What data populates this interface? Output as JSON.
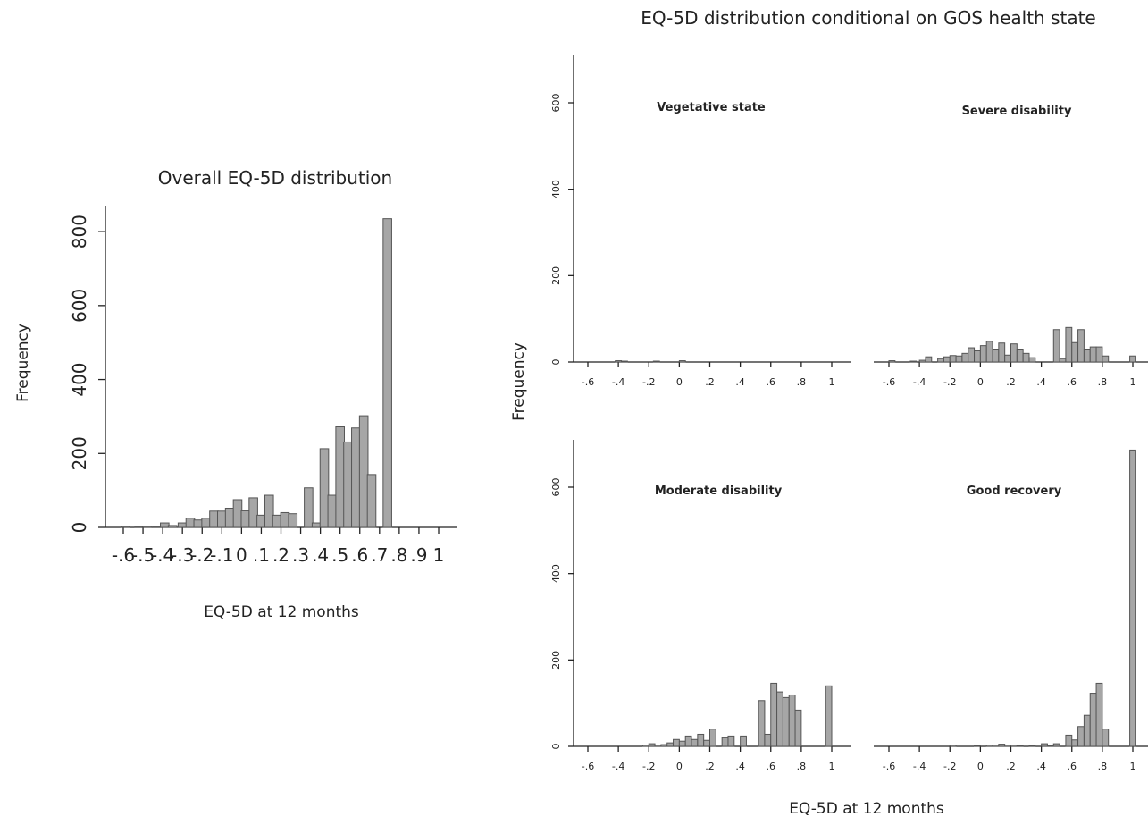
{
  "chart_data": [
    {
      "type": "bar",
      "title": "Overall EQ-5D distribution",
      "xlabel": "EQ-5D at 12 months",
      "ylabel": "Frequency",
      "ylim": [
        0,
        870
      ],
      "xlim": [
        -0.7,
        1.05
      ],
      "yticks": [
        "0",
        "200",
        "400",
        "600",
        "800"
      ],
      "xticks": [
        "-.6",
        "-.5",
        "-.4",
        "-.3",
        "-.2",
        "-.1",
        "0",
        ".1",
        ".2",
        ".3",
        ".4",
        ".5",
        ".6",
        ".7",
        ".8",
        ".9",
        "1"
      ],
      "grid": false,
      "bars": [
        {
          "x": -0.59,
          "y": 3
        },
        {
          "x": -0.52,
          "y": 1
        },
        {
          "x": -0.48,
          "y": 3
        },
        {
          "x": -0.43,
          "y": 1
        },
        {
          "x": -0.39,
          "y": 12
        },
        {
          "x": -0.35,
          "y": 5
        },
        {
          "x": -0.3,
          "y": 12
        },
        {
          "x": -0.26,
          "y": 25
        },
        {
          "x": -0.22,
          "y": 20
        },
        {
          "x": -0.18,
          "y": 25
        },
        {
          "x": -0.14,
          "y": 44
        },
        {
          "x": -0.1,
          "y": 44
        },
        {
          "x": -0.06,
          "y": 52
        },
        {
          "x": -0.02,
          "y": 75
        },
        {
          "x": 0.02,
          "y": 45
        },
        {
          "x": 0.06,
          "y": 80
        },
        {
          "x": 0.1,
          "y": 33
        },
        {
          "x": 0.14,
          "y": 87
        },
        {
          "x": 0.18,
          "y": 33
        },
        {
          "x": 0.22,
          "y": 40
        },
        {
          "x": 0.26,
          "y": 37
        },
        {
          "x": 0.34,
          "y": 107
        },
        {
          "x": 0.38,
          "y": 12
        },
        {
          "x": 0.42,
          "y": 213
        },
        {
          "x": 0.46,
          "y": 87
        },
        {
          "x": 0.5,
          "y": 272
        },
        {
          "x": 0.54,
          "y": 231
        },
        {
          "x": 0.58,
          "y": 269
        },
        {
          "x": 0.62,
          "y": 302
        },
        {
          "x": 0.66,
          "y": 143
        },
        {
          "x": 0.74,
          "y": 835
        }
      ]
    },
    {
      "type": "bar",
      "title": "EQ-5D distribution conditional on GOS health state",
      "xlabel": "EQ-5D at 12 months",
      "ylabel": "Frequency",
      "ylim": [
        0,
        710
      ],
      "xlim": [
        -0.65,
        1.05
      ],
      "yticks": [
        "0",
        "200",
        "400",
        "600"
      ],
      "xticks": [
        "-.6",
        "-.4",
        "-.2",
        "0",
        ".2",
        ".4",
        ".6",
        ".8",
        "1"
      ],
      "panels": [
        {
          "name": "Vegetative state",
          "bars": [
            {
              "x": -0.4,
              "y": 3
            },
            {
              "x": -0.36,
              "y": 2
            },
            {
              "x": -0.15,
              "y": 2
            },
            {
              "x": 0.02,
              "y": 3
            }
          ]
        },
        {
          "name": "Severe disability",
          "bars": [
            {
              "x": -0.58,
              "y": 3
            },
            {
              "x": -0.44,
              "y": 2
            },
            {
              "x": -0.38,
              "y": 4
            },
            {
              "x": -0.34,
              "y": 12
            },
            {
              "x": -0.26,
              "y": 8
            },
            {
              "x": -0.22,
              "y": 12
            },
            {
              "x": -0.18,
              "y": 15
            },
            {
              "x": -0.14,
              "y": 14
            },
            {
              "x": -0.1,
              "y": 20
            },
            {
              "x": -0.06,
              "y": 33
            },
            {
              "x": -0.02,
              "y": 26
            },
            {
              "x": 0.02,
              "y": 38
            },
            {
              "x": 0.06,
              "y": 48
            },
            {
              "x": 0.1,
              "y": 30
            },
            {
              "x": 0.14,
              "y": 44
            },
            {
              "x": 0.18,
              "y": 16
            },
            {
              "x": 0.22,
              "y": 42
            },
            {
              "x": 0.26,
              "y": 30
            },
            {
              "x": 0.3,
              "y": 20
            },
            {
              "x": 0.34,
              "y": 10
            },
            {
              "x": 0.5,
              "y": 75
            },
            {
              "x": 0.54,
              "y": 8
            },
            {
              "x": 0.58,
              "y": 80
            },
            {
              "x": 0.62,
              "y": 45
            },
            {
              "x": 0.66,
              "y": 75
            },
            {
              "x": 0.7,
              "y": 30
            },
            {
              "x": 0.74,
              "y": 35
            },
            {
              "x": 0.78,
              "y": 35
            },
            {
              "x": 0.82,
              "y": 14
            },
            {
              "x": 1.0,
              "y": 14
            }
          ]
        },
        {
          "name": "Moderate disability",
          "bars": [
            {
              "x": -0.22,
              "y": 3
            },
            {
              "x": -0.18,
              "y": 6
            },
            {
              "x": -0.14,
              "y": 3
            },
            {
              "x": -0.1,
              "y": 4
            },
            {
              "x": -0.06,
              "y": 8
            },
            {
              "x": -0.02,
              "y": 16
            },
            {
              "x": 0.02,
              "y": 12
            },
            {
              "x": 0.06,
              "y": 24
            },
            {
              "x": 0.1,
              "y": 16
            },
            {
              "x": 0.14,
              "y": 28
            },
            {
              "x": 0.18,
              "y": 14
            },
            {
              "x": 0.22,
              "y": 40
            },
            {
              "x": 0.3,
              "y": 20
            },
            {
              "x": 0.34,
              "y": 24
            },
            {
              "x": 0.42,
              "y": 24
            },
            {
              "x": 0.54,
              "y": 106
            },
            {
              "x": 0.58,
              "y": 28
            },
            {
              "x": 0.62,
              "y": 146
            },
            {
              "x": 0.66,
              "y": 126
            },
            {
              "x": 0.7,
              "y": 113
            },
            {
              "x": 0.74,
              "y": 119
            },
            {
              "x": 0.78,
              "y": 84
            },
            {
              "x": 0.98,
              "y": 140
            }
          ]
        },
        {
          "name": "Good recovery",
          "bars": [
            {
              "x": -0.18,
              "y": 3
            },
            {
              "x": -0.02,
              "y": 2
            },
            {
              "x": 0.06,
              "y": 3
            },
            {
              "x": 0.1,
              "y": 3
            },
            {
              "x": 0.14,
              "y": 5
            },
            {
              "x": 0.18,
              "y": 3
            },
            {
              "x": 0.22,
              "y": 3
            },
            {
              "x": 0.26,
              "y": 2
            },
            {
              "x": 0.34,
              "y": 2
            },
            {
              "x": 0.42,
              "y": 6
            },
            {
              "x": 0.46,
              "y": 2
            },
            {
              "x": 0.5,
              "y": 6
            },
            {
              "x": 0.58,
              "y": 26
            },
            {
              "x": 0.62,
              "y": 15
            },
            {
              "x": 0.66,
              "y": 46
            },
            {
              "x": 0.7,
              "y": 72
            },
            {
              "x": 0.74,
              "y": 123
            },
            {
              "x": 0.78,
              "y": 146
            },
            {
              "x": 0.82,
              "y": 40
            },
            {
              "x": 1.0,
              "y": 686
            }
          ]
        }
      ]
    }
  ]
}
